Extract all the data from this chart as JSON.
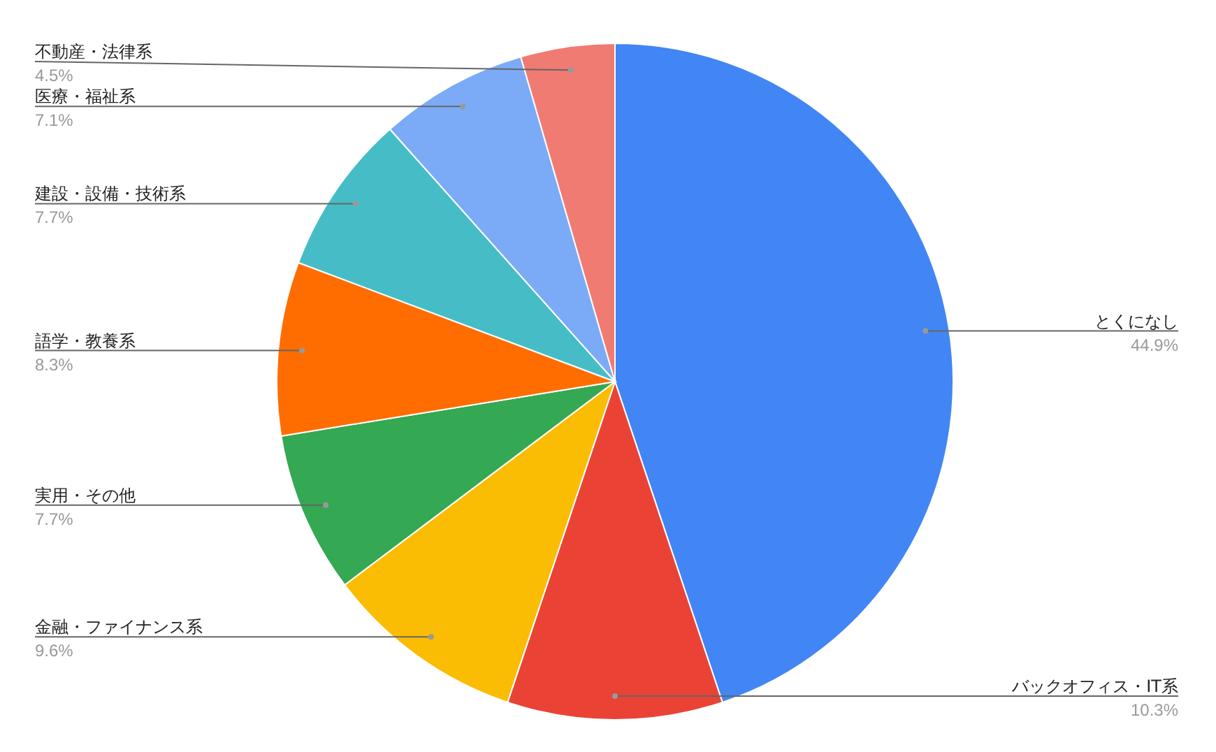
{
  "chart_data": {
    "type": "pie",
    "categories": [
      "とくになし",
      "バックオフィス・IT系",
      "金融・ファイナンス系",
      "実用・その他",
      "語学・教養系",
      "建設・設備・技術系",
      "医療・福祉系",
      "不動産・法律系"
    ],
    "values": [
      44.9,
      10.3,
      9.6,
      7.7,
      8.3,
      7.7,
      7.1,
      4.5
    ],
    "value_labels": [
      "44.9%",
      "10.3%",
      "9.6%",
      "7.7%",
      "8.3%",
      "7.7%",
      "7.1%",
      "4.5%"
    ],
    "colors": [
      "#4285f4",
      "#ea4335",
      "#fbbc04",
      "#34a853",
      "#ff6d01",
      "#46bdc6",
      "#7baaf7",
      "#f07b72"
    ],
    "legend": false
  }
}
